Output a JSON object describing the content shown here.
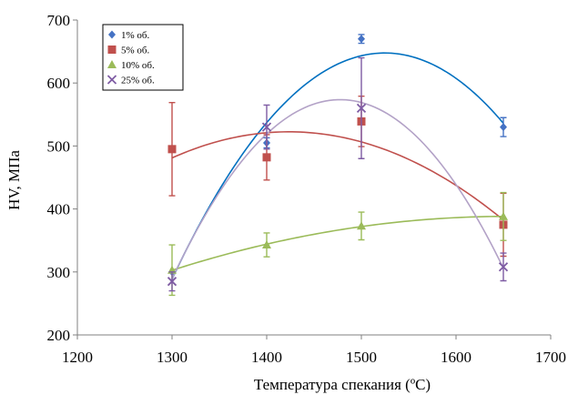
{
  "chart_data": {
    "type": "scatter",
    "title": "",
    "xlabel": "Температура спекания (ºС)",
    "ylabel": "HV, МПа",
    "xlim": [
      1200,
      1700
    ],
    "ylim": [
      200,
      700
    ],
    "xticks": [
      1200,
      1300,
      1400,
      1500,
      1600,
      1700
    ],
    "yticks": [
      200,
      300,
      400,
      500,
      600,
      700
    ],
    "grid": false,
    "legend_position": "top-left",
    "trendline": "polynomial",
    "series": [
      {
        "name": "1% об.",
        "marker": "diamond",
        "color": "#4472C4",
        "curve_color": "#0070C0",
        "x": [
          1300,
          1400,
          1500,
          1650
        ],
        "y": [
          300,
          505,
          670,
          530
        ],
        "err": [
          0,
          8,
          7,
          15
        ]
      },
      {
        "name": "5% об.",
        "marker": "square",
        "color": "#C0504D",
        "curve_color": "#C0504D",
        "x": [
          1300,
          1400,
          1500,
          1650
        ],
        "y": [
          495,
          482,
          539,
          375
        ],
        "err": [
          74,
          36,
          40,
          50
        ]
      },
      {
        "name": "10% об.",
        "marker": "triangle",
        "color": "#9BBB59",
        "curve_color": "#9BBB59",
        "x": [
          1300,
          1400,
          1500,
          1650
        ],
        "y": [
          303,
          343,
          373,
          388
        ],
        "err": [
          40,
          19,
          22,
          38
        ]
      },
      {
        "name": "25% об.",
        "marker": "x",
        "color": "#7E5BA3",
        "curve_color": "#B3A2C7",
        "x": [
          1300,
          1400,
          1500,
          1650
        ],
        "y": [
          285,
          530,
          560,
          308
        ],
        "err": [
          15,
          35,
          80,
          22
        ]
      }
    ]
  }
}
